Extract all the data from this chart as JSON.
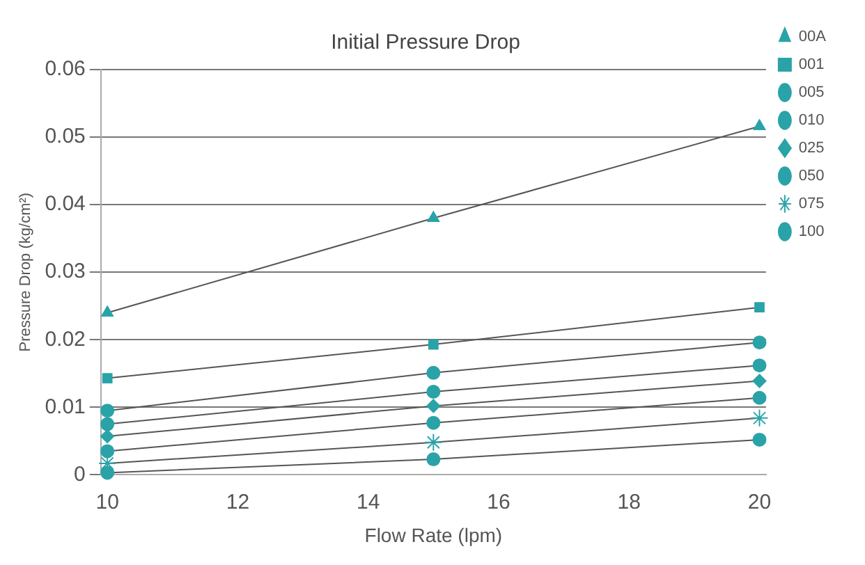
{
  "chart_data": {
    "type": "line",
    "title": "Initial Pressure Drop",
    "xlabel": "Flow Rate (lpm)",
    "ylabel": "Pressure Drop (kg/cm²)",
    "x": [
      10,
      15,
      20
    ],
    "xlim": [
      9.9,
      20.1
    ],
    "xticks": [
      10,
      12,
      14,
      16,
      18,
      20
    ],
    "ylim": [
      0,
      0.06
    ],
    "yticks": [
      0,
      0.01,
      0.02,
      0.03,
      0.04,
      0.05,
      0.06
    ],
    "grid": "y",
    "legend": "right",
    "line_style": "solid",
    "series": [
      {
        "name": "00A",
        "color": "#2aa3a8",
        "marker": "triangle",
        "values": [
          0.024,
          0.038,
          0.0516
        ]
      },
      {
        "name": "001",
        "color": "#2aa3a8",
        "marker": "square",
        "values": [
          0.0143,
          0.0193,
          0.0248
        ]
      },
      {
        "name": "005",
        "color": "#2aa3a8",
        "marker": "circle",
        "values": [
          0.0095,
          0.0151,
          0.0196
        ]
      },
      {
        "name": "010",
        "color": "#2aa3a8",
        "marker": "circle",
        "values": [
          0.0075,
          0.0123,
          0.0162
        ]
      },
      {
        "name": "025",
        "color": "#2aa3a8",
        "marker": "diamond",
        "values": [
          0.0057,
          0.0102,
          0.0139
        ]
      },
      {
        "name": "050",
        "color": "#2aa3a8",
        "marker": "circle",
        "values": [
          0.0035,
          0.0077,
          0.0114
        ]
      },
      {
        "name": "075",
        "color": "#2aa3a8",
        "marker": "cross",
        "values": [
          0.0017,
          0.0048,
          0.0084
        ]
      },
      {
        "name": "100",
        "color": "#2aa3a8",
        "marker": "circle",
        "values": [
          0.0003,
          0.0023,
          0.0052
        ]
      }
    ]
  }
}
